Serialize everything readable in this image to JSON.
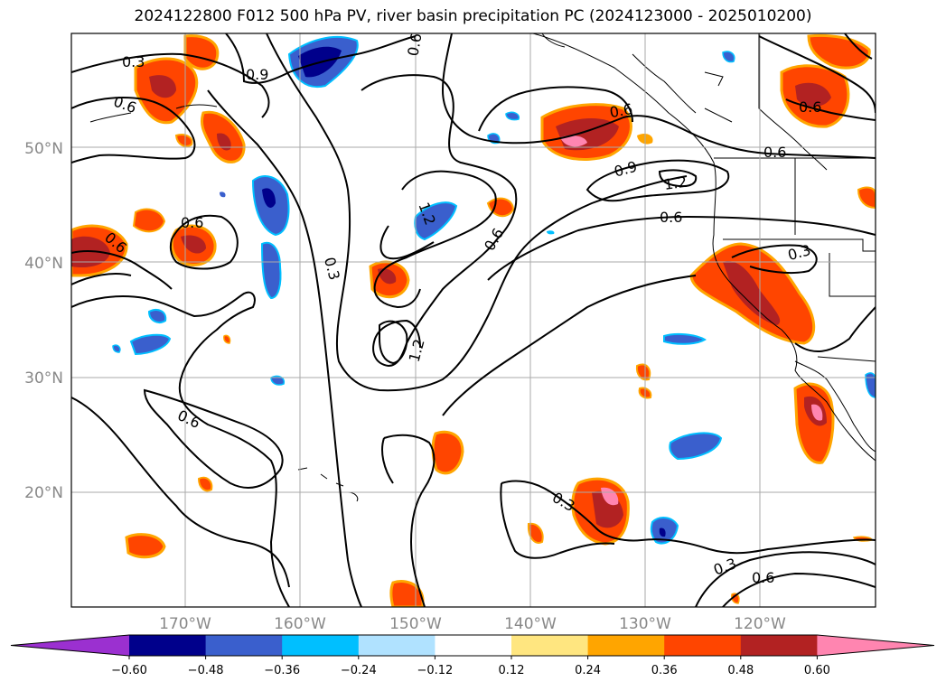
{
  "title": "2024122800 F012 500 hPa PV, river basin precipitation PC (2024123000 - 2025010200)",
  "map": {
    "lon_ticks": [
      "170°W",
      "160°W",
      "150°W",
      "140°W",
      "130°W",
      "120°W"
    ],
    "lat_ticks": [
      "50°N",
      "40°N",
      "30°N",
      "20°N"
    ],
    "contour_labels": [
      "0.3",
      "0.9",
      "0.6",
      "0.6",
      "0.6",
      "0.6",
      "0.3",
      "1.2",
      "0.6",
      "1.2",
      "0.6",
      "0.9",
      "0.6",
      "1.2",
      "0.6",
      "0.3",
      "0.3",
      "0.6",
      "0.3",
      "0.6",
      "0.6"
    ]
  },
  "colorbar": {
    "ticks": [
      "−0.60",
      "−0.48",
      "−0.36",
      "−0.24",
      "−0.12",
      "0.12",
      "0.24",
      "0.36",
      "0.48",
      "0.60"
    ],
    "colors": [
      "#9b30d0",
      "#00008b",
      "#3a5fcd",
      "#00bfff",
      "#b0e2ff",
      "#ffffff",
      "#ffe680",
      "#ffa500",
      "#ff4500",
      "#b22222",
      "#ff85b0"
    ]
  }
}
